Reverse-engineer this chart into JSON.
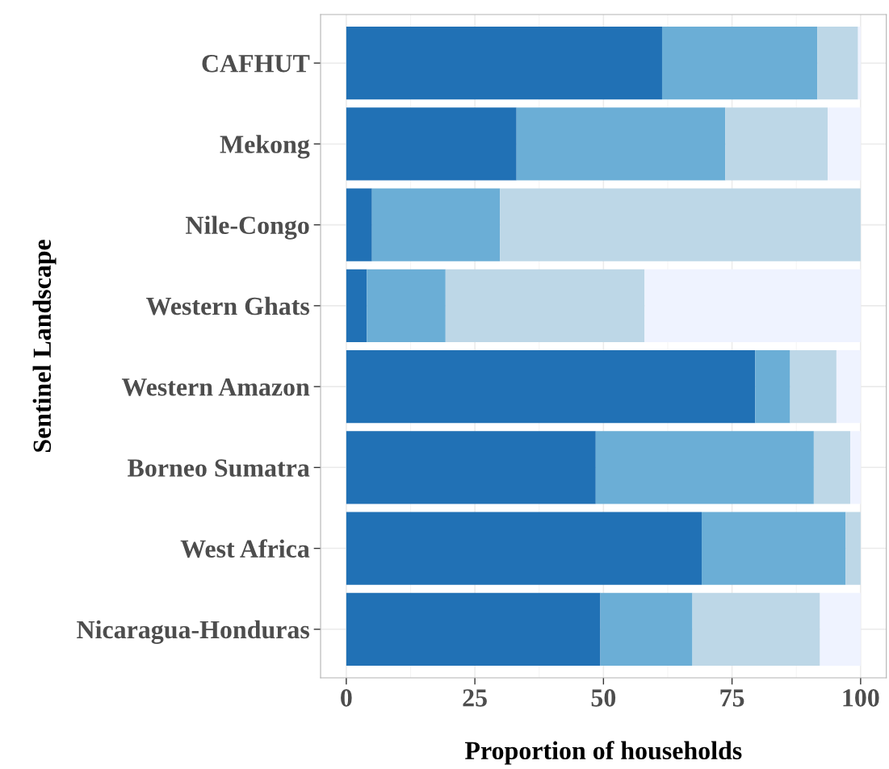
{
  "chart_data": {
    "type": "bar",
    "orientation": "horizontal",
    "stacked": true,
    "xlabel": "Proportion of households",
    "ylabel": "Sentinel Landscape",
    "categories": [
      "CAFHUT",
      "Mekong",
      "Nile-Congo",
      "Western Ghats",
      "Western Amazon",
      "Borneo Sumatra",
      "West Africa",
      "Nicaragua-Honduras"
    ],
    "series": [
      {
        "color": "#2171b5",
        "values": [
          61.4,
          33.1,
          5.0,
          4.0,
          79.5,
          48.5,
          69.1,
          49.4
        ]
      },
      {
        "color": "#6baed6",
        "values": [
          30.2,
          40.6,
          24.9,
          15.3,
          6.8,
          42.4,
          28.0,
          17.9
        ]
      },
      {
        "color": "#bdd7e7",
        "values": [
          7.9,
          19.9,
          70.1,
          38.7,
          9.0,
          7.1,
          2.9,
          24.8
        ]
      },
      {
        "color": "#eff3ff",
        "values": [
          0.5,
          6.4,
          0,
          42.0,
          4.7,
          2.0,
          0,
          7.9
        ]
      }
    ],
    "xlim": [
      -5,
      105
    ],
    "xticks": [
      0,
      25,
      50,
      75,
      100
    ],
    "grid": true
  }
}
